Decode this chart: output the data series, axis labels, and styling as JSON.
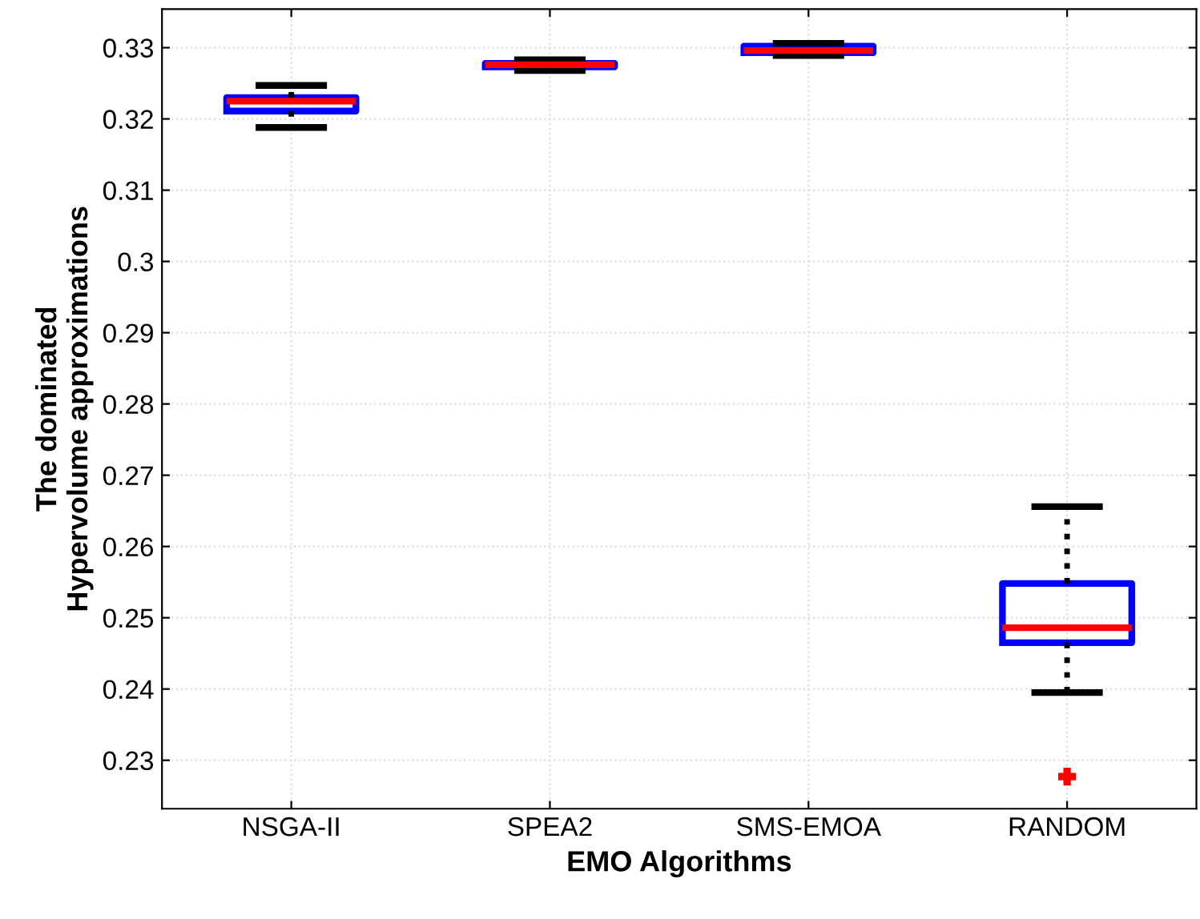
{
  "chart_data": {
    "type": "box",
    "xlabel": "EMO Algorithms",
    "ylabel": "The dominated\nHypervolume approximations",
    "categories": [
      "NSGA-II",
      "SPEA2",
      "SMS-EMOA",
      "RANDOM"
    ],
    "boxes": [
      {
        "low": 0.3188,
        "q1": 0.3211,
        "median": 0.3225,
        "q3": 0.323,
        "high": 0.3247
      },
      {
        "low": 0.3268,
        "q1": 0.3273,
        "median": 0.3276,
        "q3": 0.3278,
        "high": 0.3283
      },
      {
        "low": 0.3289,
        "q1": 0.3293,
        "median": 0.3296,
        "q3": 0.3302,
        "high": 0.3306
      },
      {
        "low": 0.2395,
        "q1": 0.2465,
        "median": 0.2486,
        "q3": 0.2548,
        "high": 0.2656,
        "outliers": [
          0.2277
        ]
      }
    ],
    "ylim": [
      0.2232,
      0.3354
    ],
    "yticks": [
      0.23,
      0.24,
      0.25,
      0.26,
      0.27,
      0.28,
      0.29,
      0.3,
      0.31,
      0.32,
      0.33
    ],
    "color": "#0000ff",
    "grid": true
  }
}
